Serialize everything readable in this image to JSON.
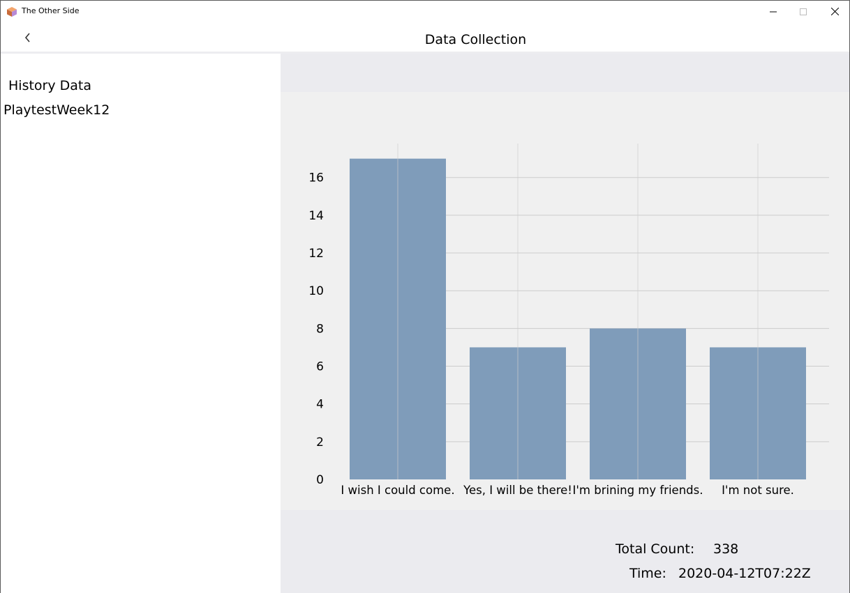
{
  "window": {
    "title": "The Other Side"
  },
  "header": {
    "title": "Data Collection"
  },
  "sidebar": {
    "heading": "History Data",
    "items": [
      {
        "label": "PlaytestWeek12"
      }
    ]
  },
  "stats": {
    "total_label": "Total Count:",
    "total_value": "338",
    "time_label": "Time:",
    "time_value": "2020-04-12T07:22Z"
  },
  "colors": {
    "bar": "#7f9cba",
    "chart_bg": "#f0f0f0",
    "main_bg": "#ebebef",
    "grid": "#cccccc"
  },
  "chart_data": {
    "type": "bar",
    "categories": [
      "I wish I could come.",
      "Yes, I will be there!",
      "I'm brining my friends.",
      "I'm not sure."
    ],
    "values": [
      17,
      7,
      8,
      7
    ],
    "yticks": [
      0,
      2,
      4,
      6,
      8,
      10,
      12,
      14,
      16
    ],
    "ylim": [
      0,
      17.8
    ],
    "grid": true
  }
}
